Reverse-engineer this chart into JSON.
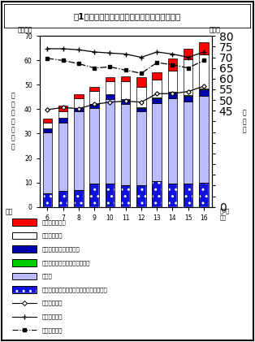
{
  "title": "図1１　大学院（修士課程）修了者の進路状況",
  "years": [
    "6",
    "7",
    "8",
    "9",
    "10",
    "11",
    "12",
    "13",
    "14",
    "15",
    "16"
  ],
  "shingakusha": [
    5.5,
    6.5,
    7.0,
    9.5,
    9.5,
    9.0,
    9.0,
    10.5,
    9.5,
    9.5,
    10.0
  ],
  "shushokusha": [
    25.0,
    28.0,
    32.0,
    31.0,
    34.5,
    33.0,
    30.0,
    32.0,
    35.0,
    33.5,
    35.5
  ],
  "ichiji": [
    1.5,
    2.0,
    1.5,
    1.5,
    2.0,
    2.0,
    1.5,
    2.0,
    2.5,
    2.5,
    2.5
  ],
  "senmon": [
    0.1,
    0.1,
    0.1,
    0.1,
    0.1,
    0.1,
    0.2,
    0.2,
    0.2,
    0.3,
    0.5
  ],
  "saiki_igai": [
    2.5,
    2.5,
    4.0,
    5.5,
    5.5,
    7.5,
    8.5,
    7.5,
    8.5,
    14.5,
    14.0
  ],
  "shibo_fusho": [
    1.5,
    2.5,
    1.5,
    1.5,
    1.5,
    2.0,
    4.0,
    3.0,
    5.0,
    4.5,
    5.0
  ],
  "rate_female": [
    45.5,
    46.5,
    46.0,
    48.0,
    49.0,
    49.5,
    49.0,
    53.0,
    53.0,
    54.0,
    56.5
  ],
  "rate_male": [
    74.0,
    74.0,
    73.5,
    72.5,
    72.0,
    71.5,
    70.0,
    72.5,
    71.5,
    70.0,
    72.5
  ],
  "rate_total": [
    69.5,
    68.5,
    67.0,
    65.0,
    65.5,
    64.0,
    62.5,
    67.5,
    66.5,
    65.0,
    68.5
  ],
  "c_shingakusha": "#1111DD",
  "c_shushokusha": "#BBBBFF",
  "c_ichiji": "#0000AA",
  "c_senmon": "#00CC00",
  "c_saiki": "#FFFFFF",
  "c_shibo": "#FF0000",
  "ylim_left": [
    0,
    70
  ],
  "ylim_right": [
    0,
    80
  ],
  "yticks_left": [
    0,
    10,
    20,
    30,
    40,
    50,
    60,
    70
  ],
  "yticks_right": [
    0,
    45,
    50,
    55,
    60,
    65,
    70,
    75,
    80
  ],
  "bar_width": 0.6,
  "figw": 3.14,
  "figh": 4.21,
  "dpi": 100,
  "label_senin": "（千人）",
  "label_pct": "（％）",
  "label_heiseinendo": "平成",
  "label_nendo": "年3月\n修了",
  "label_ylabel_left": "進\n路\n別\n修\n了\n者\n数",
  "label_ylabel_right": "就\n職\n率",
  "leg0": "死亡・不詳の者",
  "leg1": "左記以外の者",
  "leg2": "一時的な仕事に就いた者",
  "leg3": "専修学校　外国の学校等入学者",
  "leg4": "就職者",
  "leg5": "進学者（就職し，かつ進学した者を含む）",
  "leg6": "就職率（女）",
  "leg7": "就職率（男）",
  "leg8": "就職率（計）"
}
